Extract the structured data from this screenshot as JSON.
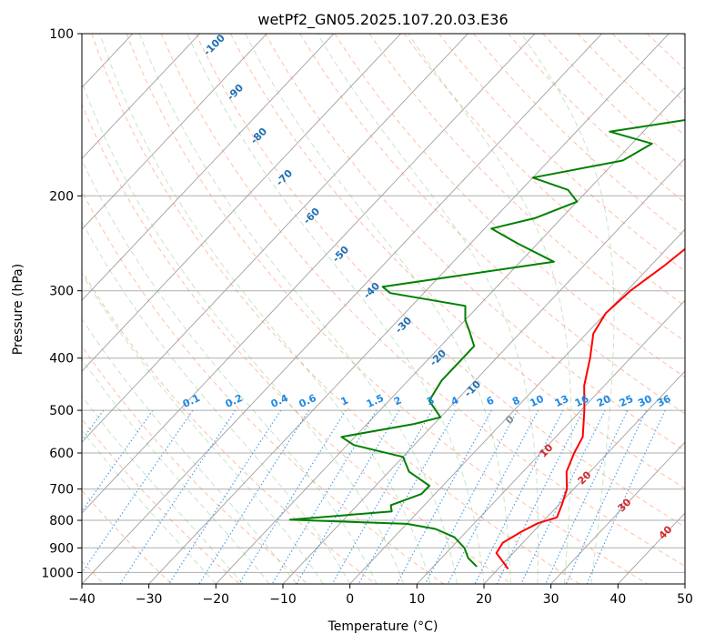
{
  "chart_data": {
    "type": "line",
    "title": "wetPf2_GN05.2025.107.20.03.E36",
    "xlabel": "Temperature (°C)",
    "ylabel": "Pressure (hPa)",
    "xlim": [
      -40,
      50
    ],
    "ylim": [
      1050,
      100
    ],
    "y_scale": "log",
    "grid": true,
    "x_ticks": [
      -40,
      -30,
      -20,
      -10,
      0,
      10,
      20,
      30,
      40,
      50
    ],
    "y_ticks": [
      100,
      200,
      300,
      400,
      500,
      600,
      700,
      800,
      900,
      1000
    ],
    "series": [
      {
        "name": "",
        "color": "#ff0000",
        "points": [
          [
            100,
            18.5
          ],
          [
            110,
            17
          ],
          [
            125,
            15
          ],
          [
            140,
            14
          ],
          [
            155,
            12
          ],
          [
            170,
            9.5
          ],
          [
            185,
            7
          ],
          [
            200,
            5
          ],
          [
            220,
            3.8
          ],
          [
            250,
            2.8
          ],
          [
            270,
            2
          ],
          [
            300,
            0.5
          ],
          [
            330,
            0
          ],
          [
            360,
            1
          ],
          [
            400,
            4
          ],
          [
            450,
            7
          ],
          [
            500,
            10.5
          ],
          [
            560,
            14
          ],
          [
            600,
            15
          ],
          [
            650,
            16.5
          ],
          [
            700,
            19
          ],
          [
            750,
            20.5
          ],
          [
            790,
            21.5
          ],
          [
            810,
            19.5
          ],
          [
            840,
            18.2
          ],
          [
            880,
            17
          ],
          [
            920,
            17.5
          ],
          [
            960,
            20
          ],
          [
            985,
            21.5
          ]
        ]
      },
      {
        "name": "",
        "color": "#008000",
        "points": [
          [
            100,
            8
          ],
          [
            110,
            4
          ],
          [
            120,
            1
          ],
          [
            130,
            -4
          ],
          [
            140,
            -9
          ],
          [
            152,
            -25
          ],
          [
            160,
            -17
          ],
          [
            172,
            -19
          ],
          [
            185,
            -30
          ],
          [
            195,
            -23
          ],
          [
            205,
            -20
          ],
          [
            220,
            -24
          ],
          [
            230,
            -29
          ],
          [
            245,
            -23
          ],
          [
            265,
            -15
          ],
          [
            285,
            -30
          ],
          [
            295,
            -37
          ],
          [
            303,
            -35
          ],
          [
            320,
            -22
          ],
          [
            340,
            -20
          ],
          [
            355,
            -18
          ],
          [
            380,
            -15
          ],
          [
            400,
            -15
          ],
          [
            440,
            -15
          ],
          [
            480,
            -14
          ],
          [
            515,
            -10
          ],
          [
            530,
            -13
          ],
          [
            560,
            -22
          ],
          [
            580,
            -19
          ],
          [
            610,
            -10
          ],
          [
            650,
            -7
          ],
          [
            690,
            -2
          ],
          [
            715,
            -2
          ],
          [
            750,
            -5
          ],
          [
            770,
            -4
          ],
          [
            798,
            -18
          ],
          [
            812,
            0
          ],
          [
            830,
            5
          ],
          [
            860,
            9
          ],
          [
            900,
            12
          ],
          [
            940,
            14
          ],
          [
            975,
            16.5
          ]
        ]
      }
    ],
    "reference_lines": {
      "isotherms_skewed": "gray solid",
      "dry_adiabats": "orange-red dashed",
      "moist_adiabats": "green dashed",
      "mixing_ratio": "blue dotted"
    },
    "dry_adiabat_labels": [
      "-100",
      "-90",
      "-80",
      "-70",
      "-60",
      "-50",
      "-40",
      "-30",
      "-20",
      "-10",
      "0",
      "10",
      "20",
      "30",
      "40"
    ],
    "mixing_ratio_labels": [
      "0.1",
      "0.2",
      "0.4",
      "0.6",
      "1",
      "1.5",
      "2",
      "3",
      "4",
      "6",
      "8",
      "10",
      "13",
      "16",
      "20",
      "25",
      "30",
      "36"
    ]
  }
}
